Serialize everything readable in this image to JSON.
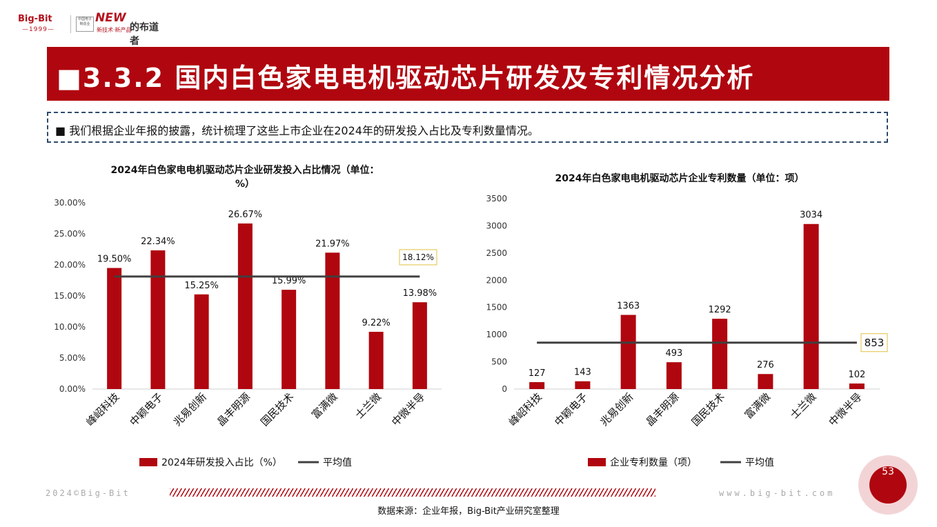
{
  "header": {
    "logo_bigbit": "Big-Bit",
    "logo_year": "—1999—",
    "logo_cn_box": "中国电子 制造业",
    "logo_new": "NEW",
    "logo_sub": "新技术·新产品",
    "logo_brand": "的布道者",
    "title": "■3.3.2 国内白色家电电机驱动芯片研发及专利情况分析",
    "note": "■ 我们根据企业年报的披露，统计梳理了这些上市企业在2024年的研发投入占比及专利数量情况。"
  },
  "colors": {
    "bar": "#b0060f",
    "avg_line": "#404040",
    "avg_box_border": "#e0c040"
  },
  "chart_data": [
    {
      "type": "bar",
      "title": "2024年白色家电电机驱动芯片企业研发投入占比情况（单位：%）",
      "title_line1": "2024年白色家电电机驱动芯片企业研发投入占比情况（单位：",
      "title_line2": "%）",
      "categories": [
        "峰岹科技",
        "中颖电子",
        "兆易创新",
        "晶丰明源",
        "国民技术",
        "富满微",
        "士兰微",
        "中微半导"
      ],
      "series": [
        {
          "name": "2024年研发投入占比（%）",
          "type": "bar",
          "values": [
            19.5,
            22.34,
            15.25,
            26.67,
            15.99,
            21.97,
            9.22,
            13.98
          ],
          "labels": [
            "19.50%",
            "22.34%",
            "15.25%",
            "26.67%",
            "15.99%",
            "21.97%",
            "9.22%",
            "13.98%"
          ]
        },
        {
          "name": "平均值",
          "type": "line",
          "value": 18.12,
          "label": "18.12%"
        }
      ],
      "yticks": [
        "0.00%",
        "5.00%",
        "10.00%",
        "15.00%",
        "20.00%",
        "25.00%",
        "30.00%"
      ],
      "ylim": [
        0,
        30
      ],
      "legend": "bottom",
      "grid": false
    },
    {
      "type": "bar",
      "title": "2024年白色家电电机驱动芯片企业专利数量（单位：项）",
      "categories": [
        "峰岹科技",
        "中颖电子",
        "兆易创新",
        "晶丰明源",
        "国民技术",
        "富满微",
        "士兰微",
        "中微半导"
      ],
      "series": [
        {
          "name": "企业专利数量（项）",
          "type": "bar",
          "values": [
            127,
            143,
            1363,
            493,
            1292,
            276,
            3034,
            102
          ],
          "labels": [
            "127",
            "143",
            "1363",
            "493",
            "1292",
            "276",
            "3034",
            "102"
          ]
        },
        {
          "name": "平均值",
          "type": "line",
          "value": 853,
          "label": "853"
        }
      ],
      "yticks": [
        "0",
        "500",
        "1000",
        "1500",
        "2000",
        "2500",
        "3000",
        "3500"
      ],
      "ylim": [
        0,
        3500
      ],
      "legend": "bottom",
      "grid": false
    }
  ],
  "footer": {
    "left": "2024©Big-Bit",
    "right": "www.big-bit.com",
    "source": "数据来源：企业年报，Big-Bit产业研究室整理",
    "page": "53"
  }
}
